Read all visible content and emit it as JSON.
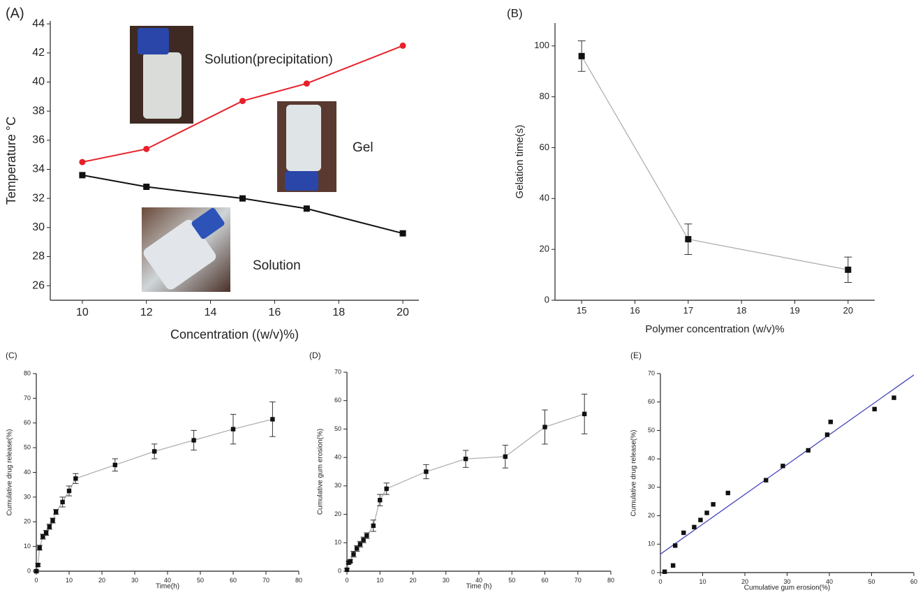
{
  "chart_data": [
    {
      "type": "line",
      "panel_label": "(A)",
      "xlabel": "Concentration ((w/v)%)",
      "ylabel": "Temperature °C",
      "x": [
        10,
        12,
        15,
        17,
        20
      ],
      "series": [
        {
          "color": "#e8202a",
          "marker": "circle",
          "values": [
            34.5,
            35.4,
            38.7,
            39.9,
            42.5
          ]
        },
        {
          "color": "#111111",
          "marker": "square",
          "values": [
            33.6,
            32.8,
            32.0,
            31.3,
            29.6
          ]
        }
      ],
      "annotations": [
        "Solution(precipitation)",
        "Gel",
        "Solution"
      ],
      "xlim": [
        9,
        20.5
      ],
      "xticks": [
        10,
        12,
        14,
        16,
        18,
        20
      ],
      "ylim": [
        25,
        44.2
      ],
      "yticks": [
        26,
        28,
        30,
        32,
        34,
        36,
        38,
        40,
        42,
        44
      ]
    },
    {
      "type": "line",
      "panel_label": "(B)",
      "xlabel": "Polymer concentration (w/v)%",
      "ylabel": "Gelation time(s)",
      "x": [
        15,
        17,
        20
      ],
      "series": [
        {
          "color": "#aaaaaa",
          "marker_color": "#111111",
          "marker": "square",
          "values": [
            96,
            24,
            12
          ],
          "errors": [
            6,
            6,
            5
          ]
        }
      ],
      "xlim": [
        14.5,
        20.5
      ],
      "xticks": [
        15,
        16,
        17,
        18,
        19,
        20
      ],
      "ylim": [
        0,
        109
      ],
      "yticks": [
        0,
        20,
        40,
        60,
        80,
        100
      ]
    },
    {
      "type": "line",
      "panel_label": "(C)",
      "xlabel": "Time(h)",
      "ylabel": "Cumulative drug release(%)",
      "x": [
        0,
        0.5,
        1,
        2,
        3,
        4,
        5,
        6,
        8,
        10,
        12,
        24,
        36,
        48,
        60,
        72
      ],
      "series": [
        {
          "color": "#aaaaaa",
          "marker_color": "#111111",
          "marker": "square",
          "values": [
            0,
            2.5,
            9.5,
            14,
            15.5,
            18,
            20.5,
            24,
            28,
            32.5,
            37.5,
            43,
            48.5,
            53,
            57.5,
            61.5
          ],
          "errors": [
            0.5,
            0.5,
            1,
            1,
            1,
            1,
            1,
            1,
            2,
            2,
            2,
            2.5,
            3,
            4,
            6,
            7
          ]
        }
      ],
      "xlim": [
        0,
        80
      ],
      "xticks": [
        0,
        10,
        20,
        30,
        40,
        50,
        60,
        70,
        80
      ],
      "ylim": [
        0,
        80
      ],
      "yticks": [
        0,
        10,
        20,
        30,
        40,
        50,
        60,
        70,
        80
      ]
    },
    {
      "type": "line",
      "panel_label": "(D)",
      "xlabel": "Time (h)",
      "ylabel": "Cumulative gum erosion(%)",
      "x": [
        0,
        0.5,
        1,
        2,
        3,
        4,
        5,
        6,
        8,
        10,
        12,
        24,
        36,
        48,
        60,
        72
      ],
      "series": [
        {
          "color": "#aaaaaa",
          "marker_color": "#111111",
          "marker": "square",
          "values": [
            0.5,
            3,
            3.5,
            6,
            8,
            9.5,
            11,
            12.5,
            16,
            25,
            29,
            35,
            39.5,
            40.3,
            50.7,
            55.3
          ],
          "errors": [
            0.5,
            0.5,
            0.5,
            1,
            1,
            1,
            1,
            1,
            2,
            2,
            2,
            2.5,
            3,
            4,
            6,
            7
          ]
        }
      ],
      "xlim": [
        0,
        80
      ],
      "xticks": [
        0,
        10,
        20,
        30,
        40,
        50,
        60,
        70,
        80
      ],
      "ylim": [
        0,
        70
      ],
      "yticks": [
        0,
        10,
        20,
        30,
        40,
        50,
        60,
        70
      ]
    },
    {
      "type": "scatter",
      "panel_label": "(E)",
      "xlabel": "Cumulative gum erosion(%)",
      "ylabel": "Cumulative drug release(%)",
      "x": [
        1,
        3,
        3.5,
        5.5,
        8,
        9.5,
        11,
        12.5,
        16,
        25,
        29,
        35,
        39.5,
        40.3,
        50.7,
        55.3
      ],
      "series": [
        {
          "color": "#111111",
          "marker": "square",
          "values": [
            0.3,
            2.5,
            9.5,
            14,
            16,
            18.5,
            21,
            24,
            28,
            32.5,
            37.5,
            43,
            48.5,
            53,
            57.5,
            61.5
          ]
        }
      ],
      "fit_line": {
        "color": "#4444bb",
        "x": [
          0,
          60
        ],
        "y": [
          6.5,
          69.5
        ]
      },
      "xlim": [
        0,
        60
      ],
      "xticks": [
        0,
        10,
        20,
        30,
        40,
        50,
        60
      ],
      "ylim": [
        0,
        70
      ],
      "yticks": [
        0,
        10,
        20,
        30,
        40,
        50,
        60,
        70
      ]
    }
  ]
}
